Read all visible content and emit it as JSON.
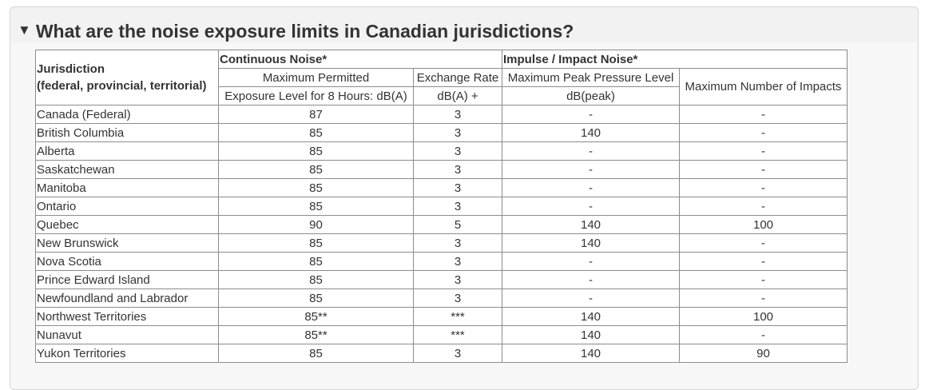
{
  "section": {
    "caret": "▼",
    "question": "What are the noise exposure limits in Canadian jurisdictions?"
  },
  "table": {
    "headers": {
      "jurisdiction_line1": "Jurisdiction",
      "jurisdiction_line2": "(federal, provincial, territorial)",
      "continuous_group": "Continuous Noise*",
      "impulse_group": "Impulse / Impact Noise*",
      "max_exposure_line1": "Maximum Permitted",
      "max_exposure_line2": "Exposure Level for 8 Hours: dB(A)",
      "exchange_line1": "Exchange Rate",
      "exchange_line2": "dB(A) +",
      "peak_line1": "Maximum Peak Pressure Level",
      "peak_line2": "dB(peak)",
      "impacts": "Maximum Number of Impacts"
    },
    "rows": [
      {
        "jurisdiction": "Canada (Federal)",
        "exposure": "87",
        "exchange": "3",
        "peak": "-",
        "impacts": "-"
      },
      {
        "jurisdiction": "British Columbia",
        "exposure": "85",
        "exchange": "3",
        "peak": "140",
        "impacts": "-"
      },
      {
        "jurisdiction": "Alberta",
        "exposure": "85",
        "exchange": "3",
        "peak": "-",
        "impacts": "-"
      },
      {
        "jurisdiction": "Saskatchewan",
        "exposure": "85",
        "exchange": "3",
        "peak": "-",
        "impacts": "-"
      },
      {
        "jurisdiction": "Manitoba",
        "exposure": "85",
        "exchange": "3",
        "peak": "-",
        "impacts": "-"
      },
      {
        "jurisdiction": "Ontario",
        "exposure": "85",
        "exchange": "3",
        "peak": "-",
        "impacts": "-"
      },
      {
        "jurisdiction": "Quebec",
        "exposure": "90",
        "exchange": "5",
        "peak": "140",
        "impacts": "100"
      },
      {
        "jurisdiction": "New Brunswick",
        "exposure": "85",
        "exchange": "3",
        "peak": "140",
        "impacts": "-"
      },
      {
        "jurisdiction": "Nova Scotia",
        "exposure": "85",
        "exchange": "3",
        "peak": "-",
        "impacts": "-"
      },
      {
        "jurisdiction": "Prince Edward Island",
        "exposure": "85",
        "exchange": "3",
        "peak": "-",
        "impacts": "-"
      },
      {
        "jurisdiction": "Newfoundland and Labrador",
        "exposure": "85",
        "exchange": "3",
        "peak": "-",
        "impacts": "-"
      },
      {
        "jurisdiction": "Northwest Territories",
        "exposure": "85**",
        "exchange": "***",
        "peak": "140",
        "impacts": "100"
      },
      {
        "jurisdiction": "Nunavut",
        "exposure": "85**",
        "exchange": "***",
        "peak": "140",
        "impacts": "-"
      },
      {
        "jurisdiction": "Yukon Territories",
        "exposure": "85",
        "exchange": "3",
        "peak": "140",
        "impacts": "90"
      }
    ]
  }
}
